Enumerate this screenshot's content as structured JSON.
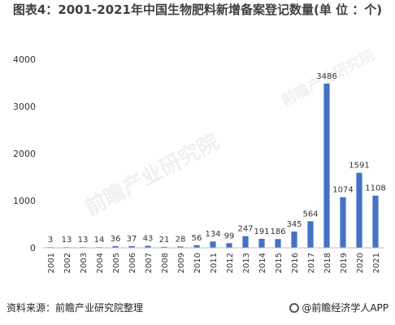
{
  "title": "图表4：2001-2021年中国生物肥料新增备案登记数量(单 位 ：个)",
  "source": "资料来源：前瞻产业研究院整理",
  "brand": "@前瞻经济学人APP",
  "watermark": "前瞻产业研究院",
  "colors": {
    "bar": "#4472C4",
    "axis": "#BFBFBF",
    "text": "#333333"
  },
  "chart_data": {
    "type": "bar",
    "title": "图表4：2001-2021年中国生物肥料新增备案登记数量(单 位 ：个)",
    "xlabel": "",
    "ylabel": "",
    "categories": [
      "2001",
      "2002",
      "2003",
      "2004",
      "2005",
      "2006",
      "2007",
      "2008",
      "2009",
      "2010",
      "2011",
      "2012",
      "2013",
      "2014",
      "2015",
      "2016",
      "2017",
      "2018",
      "2019",
      "2020",
      "2021"
    ],
    "values": [
      3,
      13,
      13,
      14,
      36,
      37,
      43,
      21,
      28,
      56,
      134,
      99,
      247,
      191,
      186,
      345,
      564,
      3486,
      1074,
      1591,
      1108
    ],
    "ylim": [
      0,
      4000
    ],
    "yticks": [
      0,
      1000,
      2000,
      3000,
      4000
    ],
    "grid": false,
    "legend": "none",
    "data_labels": true
  }
}
